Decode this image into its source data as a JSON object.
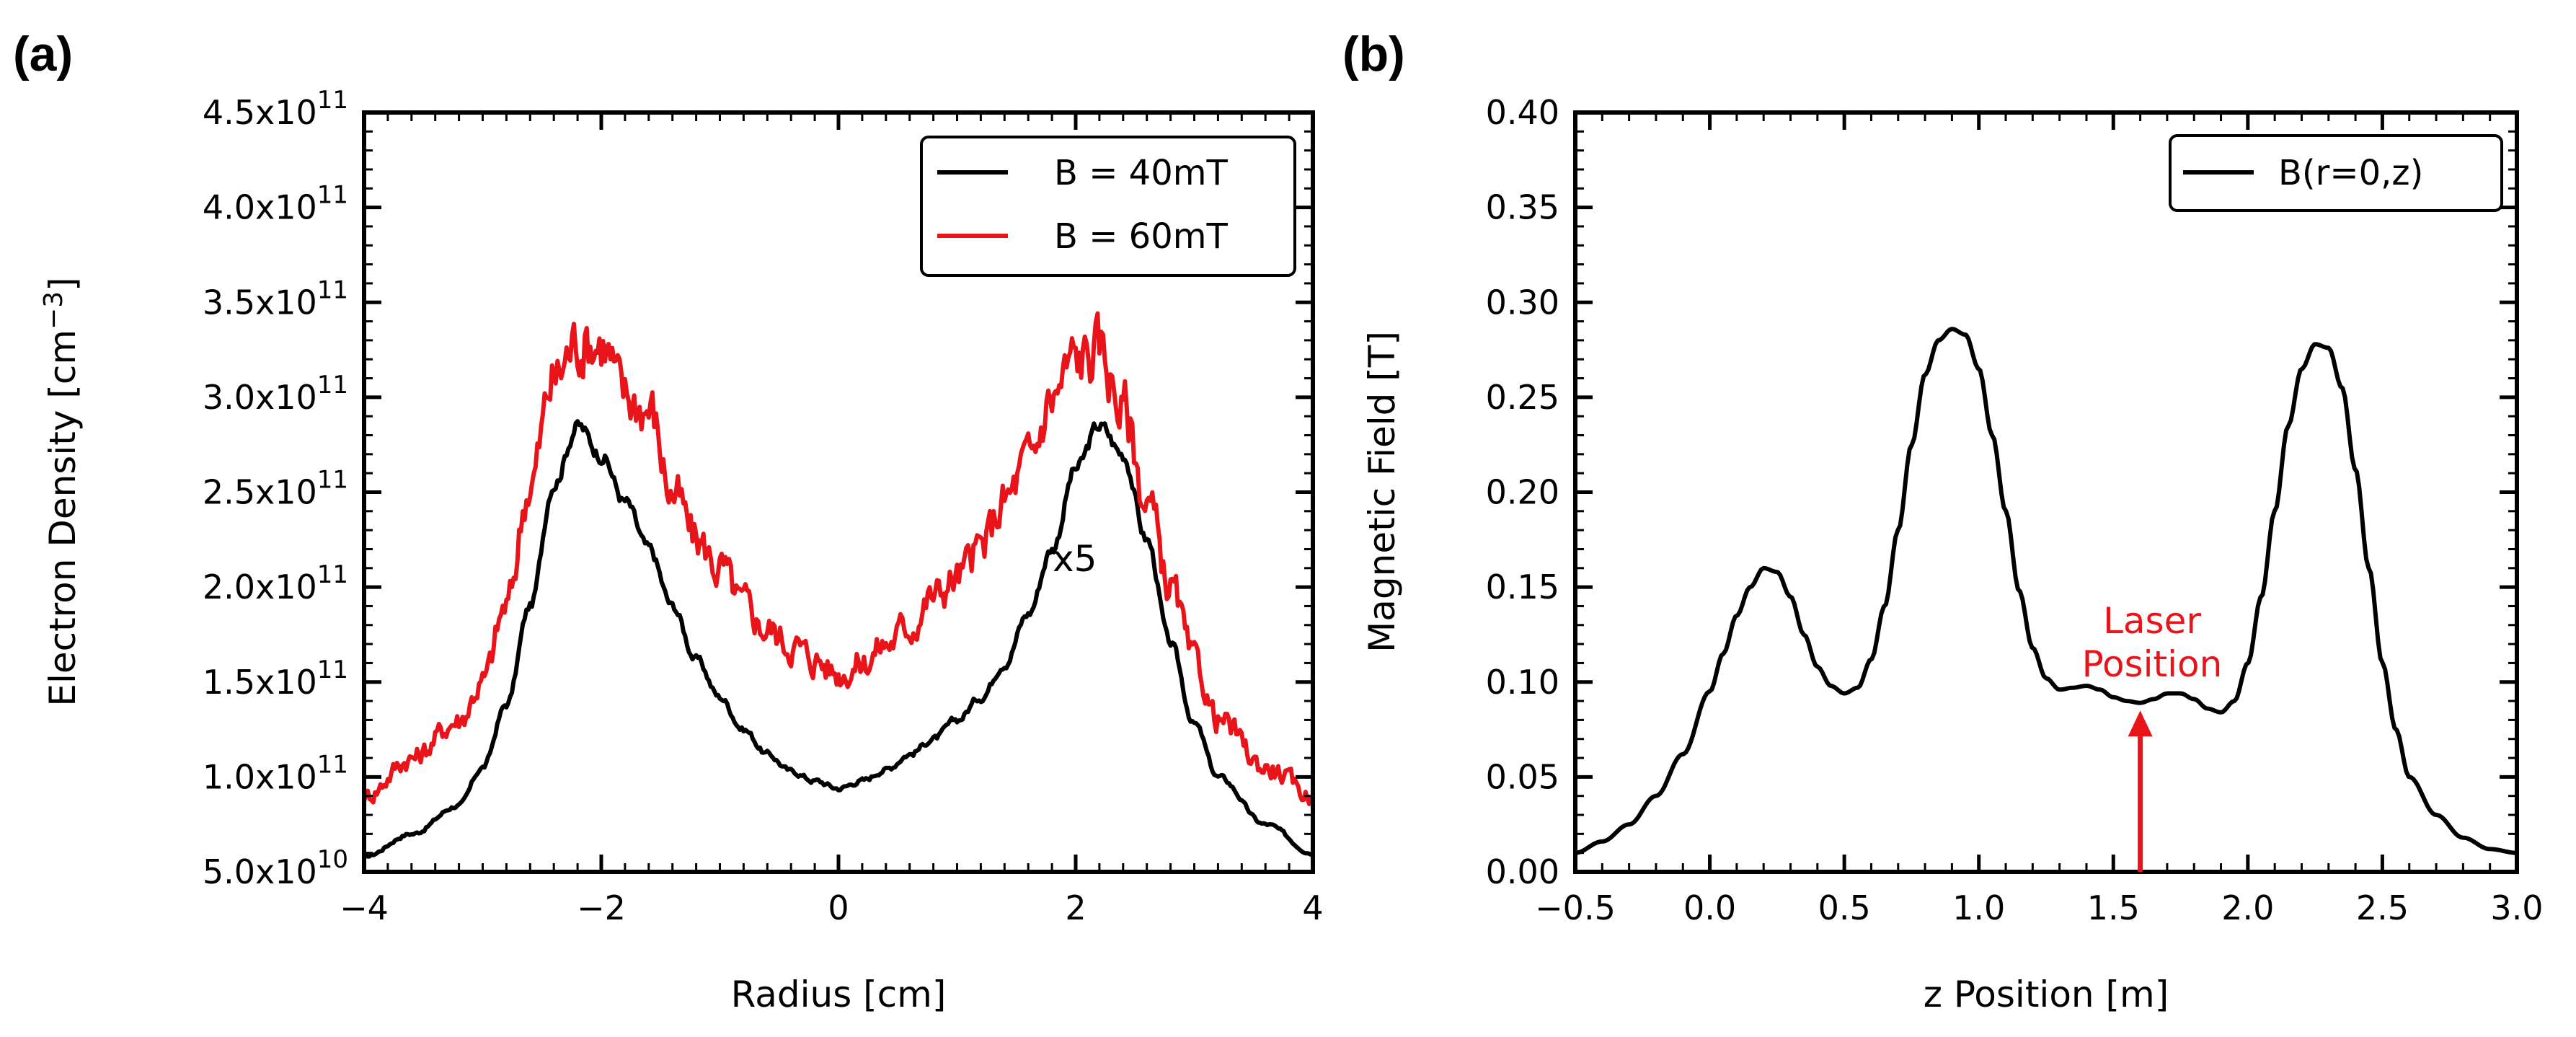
{
  "chart_data": [
    {
      "panel": "(a)",
      "type": "line",
      "title": "",
      "xlabel": "Radius [cm]",
      "ylabel": "Electron Density [cm",
      "ylabel_sup": "−3",
      "ylabel_close": "]",
      "xlim": [
        -4,
        4
      ],
      "ylim": [
        50000000000.0,
        450000000000.0
      ],
      "xticks": [
        -4,
        -2,
        0,
        2,
        4
      ],
      "xtick_labels": [
        "−4",
        "−2",
        "0",
        "2",
        "4"
      ],
      "yticks": [
        50000000000.0,
        100000000000.0,
        150000000000.0,
        200000000000.0,
        250000000000.0,
        300000000000.0,
        350000000000.0,
        400000000000.0,
        450000000000.0
      ],
      "ytick_labels": [
        {
          "mant": "5.0x10",
          "exp": "10"
        },
        {
          "mant": "1.0x10",
          "exp": "11"
        },
        {
          "mant": "1.5x10",
          "exp": "11"
        },
        {
          "mant": "2.0x10",
          "exp": "11"
        },
        {
          "mant": "2.5x10",
          "exp": "11"
        },
        {
          "mant": "3.0x10",
          "exp": "11"
        },
        {
          "mant": "3.5x10",
          "exp": "11"
        },
        {
          "mant": "4.0x10",
          "exp": "11"
        },
        {
          "mant": "4.5x10",
          "exp": "11"
        }
      ],
      "legend": "top-right",
      "annotation": "x5",
      "series": [
        {
          "name": "B = 40mT",
          "color": "#000000",
          "x": [
            -4.0,
            -3.6,
            -3.2,
            -3.0,
            -2.8,
            -2.6,
            -2.4,
            -2.2,
            -2.0,
            -1.8,
            -1.6,
            -1.4,
            -1.2,
            -1.0,
            -0.8,
            -0.6,
            -0.4,
            -0.2,
            0.0,
            0.2,
            0.4,
            0.6,
            0.8,
            1.0,
            1.2,
            1.4,
            1.6,
            1.8,
            2.0,
            2.2,
            2.4,
            2.6,
            2.8,
            3.0,
            3.2,
            3.6,
            4.0
          ],
          "y": [
            58000000000.0,
            70000000000.0,
            85000000000.0,
            105000000000.0,
            138000000000.0,
            190000000000.0,
            255000000000.0,
            285000000000.0,
            270000000000.0,
            245000000000.0,
            220000000000.0,
            190000000000.0,
            162000000000.0,
            142000000000.0,
            125000000000.0,
            112000000000.0,
            103000000000.0,
            98000000000.0,
            94000000000.0,
            98000000000.0,
            104000000000.0,
            112000000000.0,
            120000000000.0,
            130000000000.0,
            142000000000.0,
            160000000000.0,
            186000000000.0,
            220000000000.0,
            262000000000.0,
            285000000000.0,
            270000000000.0,
            225000000000.0,
            170000000000.0,
            128000000000.0,
            100000000000.0,
            75000000000.0,
            60000000000.0
          ]
        },
        {
          "name": "B = 60mT",
          "color": "#e8141a",
          "x": [
            -4.0,
            -3.6,
            -3.2,
            -3.0,
            -2.8,
            -2.6,
            -2.4,
            -2.2,
            -2.0,
            -1.8,
            -1.6,
            -1.4,
            -1.2,
            -1.0,
            -0.8,
            -0.6,
            -0.4,
            -0.2,
            0.0,
            0.2,
            0.4,
            0.6,
            0.8,
            1.0,
            1.2,
            1.4,
            1.6,
            1.8,
            2.0,
            2.2,
            2.4,
            2.6,
            2.8,
            3.0,
            3.2,
            3.6,
            4.0
          ],
          "y": [
            90000000000.0,
            110000000000.0,
            130000000000.0,
            150000000000.0,
            190000000000.0,
            255000000000.0,
            310000000000.0,
            330000000000.0,
            330000000000.0,
            300000000000.0,
            295000000000.0,
            250000000000.0,
            225000000000.0,
            210000000000.0,
            190000000000.0,
            178000000000.0,
            170000000000.0,
            162000000000.0,
            155000000000.0,
            160000000000.0,
            170000000000.0,
            180000000000.0,
            195000000000.0,
            205000000000.0,
            220000000000.0,
            245000000000.0,
            265000000000.0,
            300000000000.0,
            320000000000.0,
            325000000000.0,
            295000000000.0,
            245000000000.0,
            200000000000.0,
            160000000000.0,
            130000000000.0,
            105000000000.0,
            90000000000.0
          ]
        }
      ]
    },
    {
      "panel": "(b)",
      "type": "line",
      "title": "",
      "xlabel": "z Position [m]",
      "ylabel": "Magnetic Field [T]",
      "xlim": [
        -0.5,
        3.0
      ],
      "ylim": [
        0.0,
        0.4
      ],
      "xticks": [
        -0.5,
        0.0,
        0.5,
        1.0,
        1.5,
        2.0,
        2.5,
        3.0
      ],
      "xtick_labels": [
        "−0.5",
        "0.0",
        "0.5",
        "1.0",
        "1.5",
        "2.0",
        "2.5",
        "3.0"
      ],
      "yticks": [
        0.0,
        0.05,
        0.1,
        0.15,
        0.2,
        0.25,
        0.3,
        0.35,
        0.4
      ],
      "ytick_labels": [
        "0.00",
        "0.05",
        "0.10",
        "0.15",
        "0.20",
        "0.25",
        "0.30",
        "0.35",
        "0.40"
      ],
      "legend": "top-right",
      "annotation": {
        "lines": [
          "Laser",
          "Position"
        ],
        "color": "#e8141a",
        "arrow_x": 1.6,
        "arrow_from_y": 0.0,
        "arrow_to_y": 0.085
      },
      "series": [
        {
          "name": "B(r=0,z)",
          "color": "#000000",
          "x": [
            -0.5,
            -0.4,
            -0.3,
            -0.2,
            -0.1,
            0.0,
            0.05,
            0.1,
            0.15,
            0.2,
            0.25,
            0.3,
            0.35,
            0.4,
            0.45,
            0.5,
            0.55,
            0.6,
            0.65,
            0.7,
            0.75,
            0.8,
            0.85,
            0.9,
            0.95,
            1.0,
            1.05,
            1.1,
            1.15,
            1.2,
            1.25,
            1.3,
            1.35,
            1.4,
            1.45,
            1.5,
            1.55,
            1.6,
            1.65,
            1.7,
            1.75,
            1.8,
            1.85,
            1.9,
            1.95,
            2.0,
            2.05,
            2.1,
            2.15,
            2.2,
            2.25,
            2.3,
            2.35,
            2.4,
            2.45,
            2.5,
            2.55,
            2.6,
            2.7,
            2.8,
            2.9,
            3.0
          ],
          "y": [
            0.01,
            0.016,
            0.025,
            0.04,
            0.062,
            0.095,
            0.115,
            0.135,
            0.15,
            0.16,
            0.158,
            0.145,
            0.125,
            0.108,
            0.098,
            0.094,
            0.097,
            0.112,
            0.14,
            0.18,
            0.225,
            0.262,
            0.28,
            0.286,
            0.283,
            0.265,
            0.23,
            0.19,
            0.148,
            0.118,
            0.102,
            0.096,
            0.097,
            0.098,
            0.096,
            0.092,
            0.09,
            0.089,
            0.091,
            0.094,
            0.094,
            0.091,
            0.086,
            0.084,
            0.09,
            0.11,
            0.145,
            0.19,
            0.235,
            0.265,
            0.278,
            0.276,
            0.255,
            0.212,
            0.16,
            0.11,
            0.075,
            0.05,
            0.03,
            0.018,
            0.012,
            0.01
          ]
        }
      ]
    }
  ]
}
